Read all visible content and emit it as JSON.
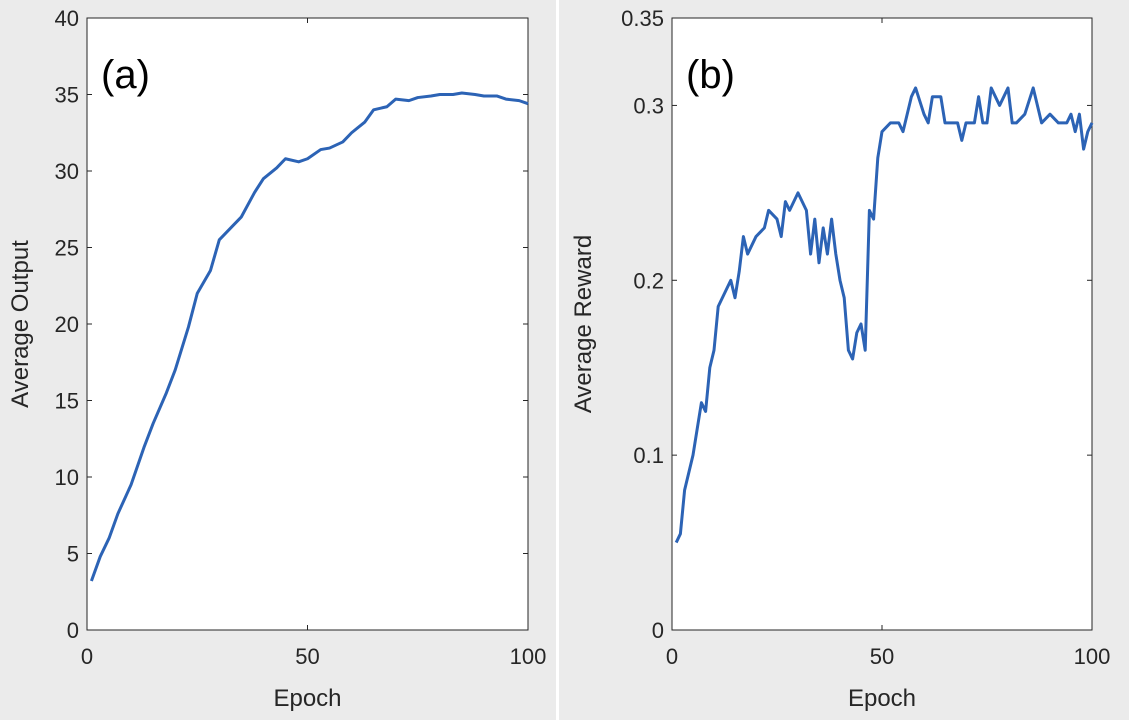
{
  "chart_data": [
    {
      "type": "line",
      "annotation": "(a)",
      "xlabel": "Epoch",
      "ylabel": "Average Output",
      "color": "#2c63b5",
      "x": [
        1,
        3,
        5,
        7,
        10,
        13,
        15,
        18,
        20,
        23,
        25,
        28,
        30,
        33,
        35,
        38,
        40,
        43,
        45,
        48,
        50,
        53,
        55,
        58,
        60,
        63,
        65,
        68,
        70,
        73,
        75,
        78,
        80,
        83,
        85,
        88,
        90,
        93,
        95,
        98,
        100
      ],
      "values": [
        3.2,
        4.8,
        6,
        7.6,
        9.5,
        12,
        13.5,
        15.5,
        17,
        19.8,
        22,
        23.5,
        25.5,
        26.4,
        27,
        28.6,
        29.5,
        30.2,
        30.8,
        30.6,
        30.8,
        31.4,
        31.5,
        31.9,
        32.5,
        33.2,
        34,
        34.2,
        34.7,
        34.6,
        34.8,
        34.9,
        35,
        35,
        35.1,
        35,
        34.9,
        34.9,
        34.7,
        34.6,
        34.4
      ],
      "xlim": [
        0,
        100
      ],
      "ylim": [
        0,
        40
      ],
      "xticks": [
        0,
        50,
        100
      ],
      "yticks": [
        0,
        5,
        10,
        15,
        20,
        25,
        30,
        35,
        40
      ]
    },
    {
      "type": "line",
      "annotation": "(b)",
      "xlabel": "Epoch",
      "ylabel": "Average Reward",
      "color": "#2c63b5",
      "x": [
        1,
        2,
        3,
        4,
        5,
        6,
        7,
        8,
        9,
        10,
        11,
        13,
        14,
        15,
        16,
        17,
        18,
        20,
        22,
        23,
        25,
        26,
        27,
        28,
        30,
        32,
        33,
        34,
        35,
        36,
        37,
        38,
        39,
        40,
        41,
        42,
        43,
        44,
        45,
        46,
        47,
        48,
        49,
        50,
        52,
        54,
        55,
        57,
        58,
        60,
        61,
        62,
        64,
        65,
        66,
        68,
        69,
        70,
        72,
        73,
        74,
        75,
        76,
        78,
        80,
        81,
        82,
        84,
        86,
        88,
        90,
        92,
        94,
        95,
        96,
        97,
        98,
        99,
        100
      ],
      "values": [
        0.05,
        0.055,
        0.08,
        0.09,
        0.1,
        0.115,
        0.13,
        0.125,
        0.15,
        0.16,
        0.185,
        0.195,
        0.2,
        0.19,
        0.205,
        0.225,
        0.215,
        0.225,
        0.23,
        0.24,
        0.235,
        0.225,
        0.245,
        0.24,
        0.25,
        0.24,
        0.215,
        0.235,
        0.21,
        0.23,
        0.215,
        0.235,
        0.215,
        0.2,
        0.19,
        0.16,
        0.155,
        0.17,
        0.175,
        0.16,
        0.24,
        0.235,
        0.27,
        0.285,
        0.29,
        0.29,
        0.285,
        0.305,
        0.31,
        0.295,
        0.29,
        0.305,
        0.305,
        0.29,
        0.29,
        0.29,
        0.28,
        0.29,
        0.29,
        0.305,
        0.29,
        0.29,
        0.31,
        0.3,
        0.31,
        0.29,
        0.29,
        0.295,
        0.31,
        0.29,
        0.295,
        0.29,
        0.29,
        0.295,
        0.285,
        0.295,
        0.275,
        0.285,
        0.29
      ],
      "xlim": [
        0,
        100
      ],
      "ylim": [
        0,
        0.35
      ],
      "xticks": [
        0,
        50,
        100
      ],
      "yticks": [
        0,
        0.1,
        0.2,
        0.3,
        0.35
      ]
    }
  ]
}
